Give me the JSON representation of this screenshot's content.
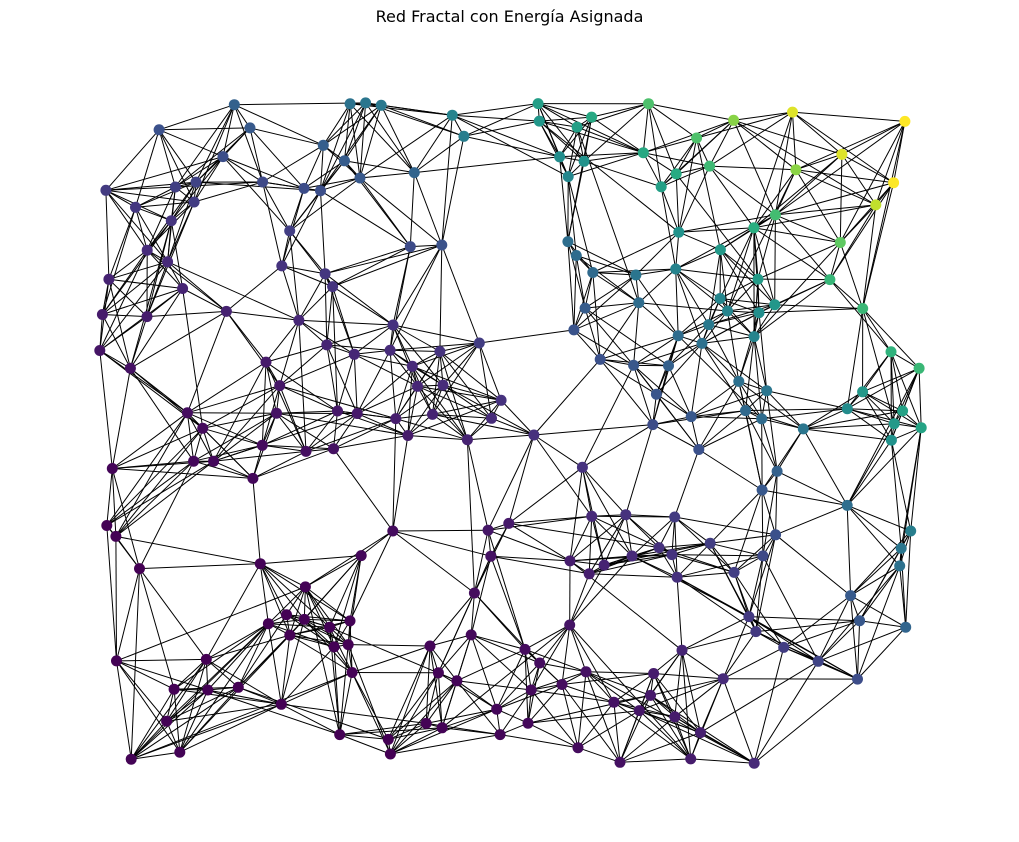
{
  "title": "Red Fractal con Energía Asignada",
  "graph": {
    "colormap": [
      "#440154",
      "#472e7c",
      "#3b528b",
      "#2c728e",
      "#21918c",
      "#28ae80",
      "#5ec962",
      "#addc30",
      "#fde725"
    ],
    "edge_color": "#000000",
    "node_count": 220,
    "neighbors_per_node": 7
  }
}
